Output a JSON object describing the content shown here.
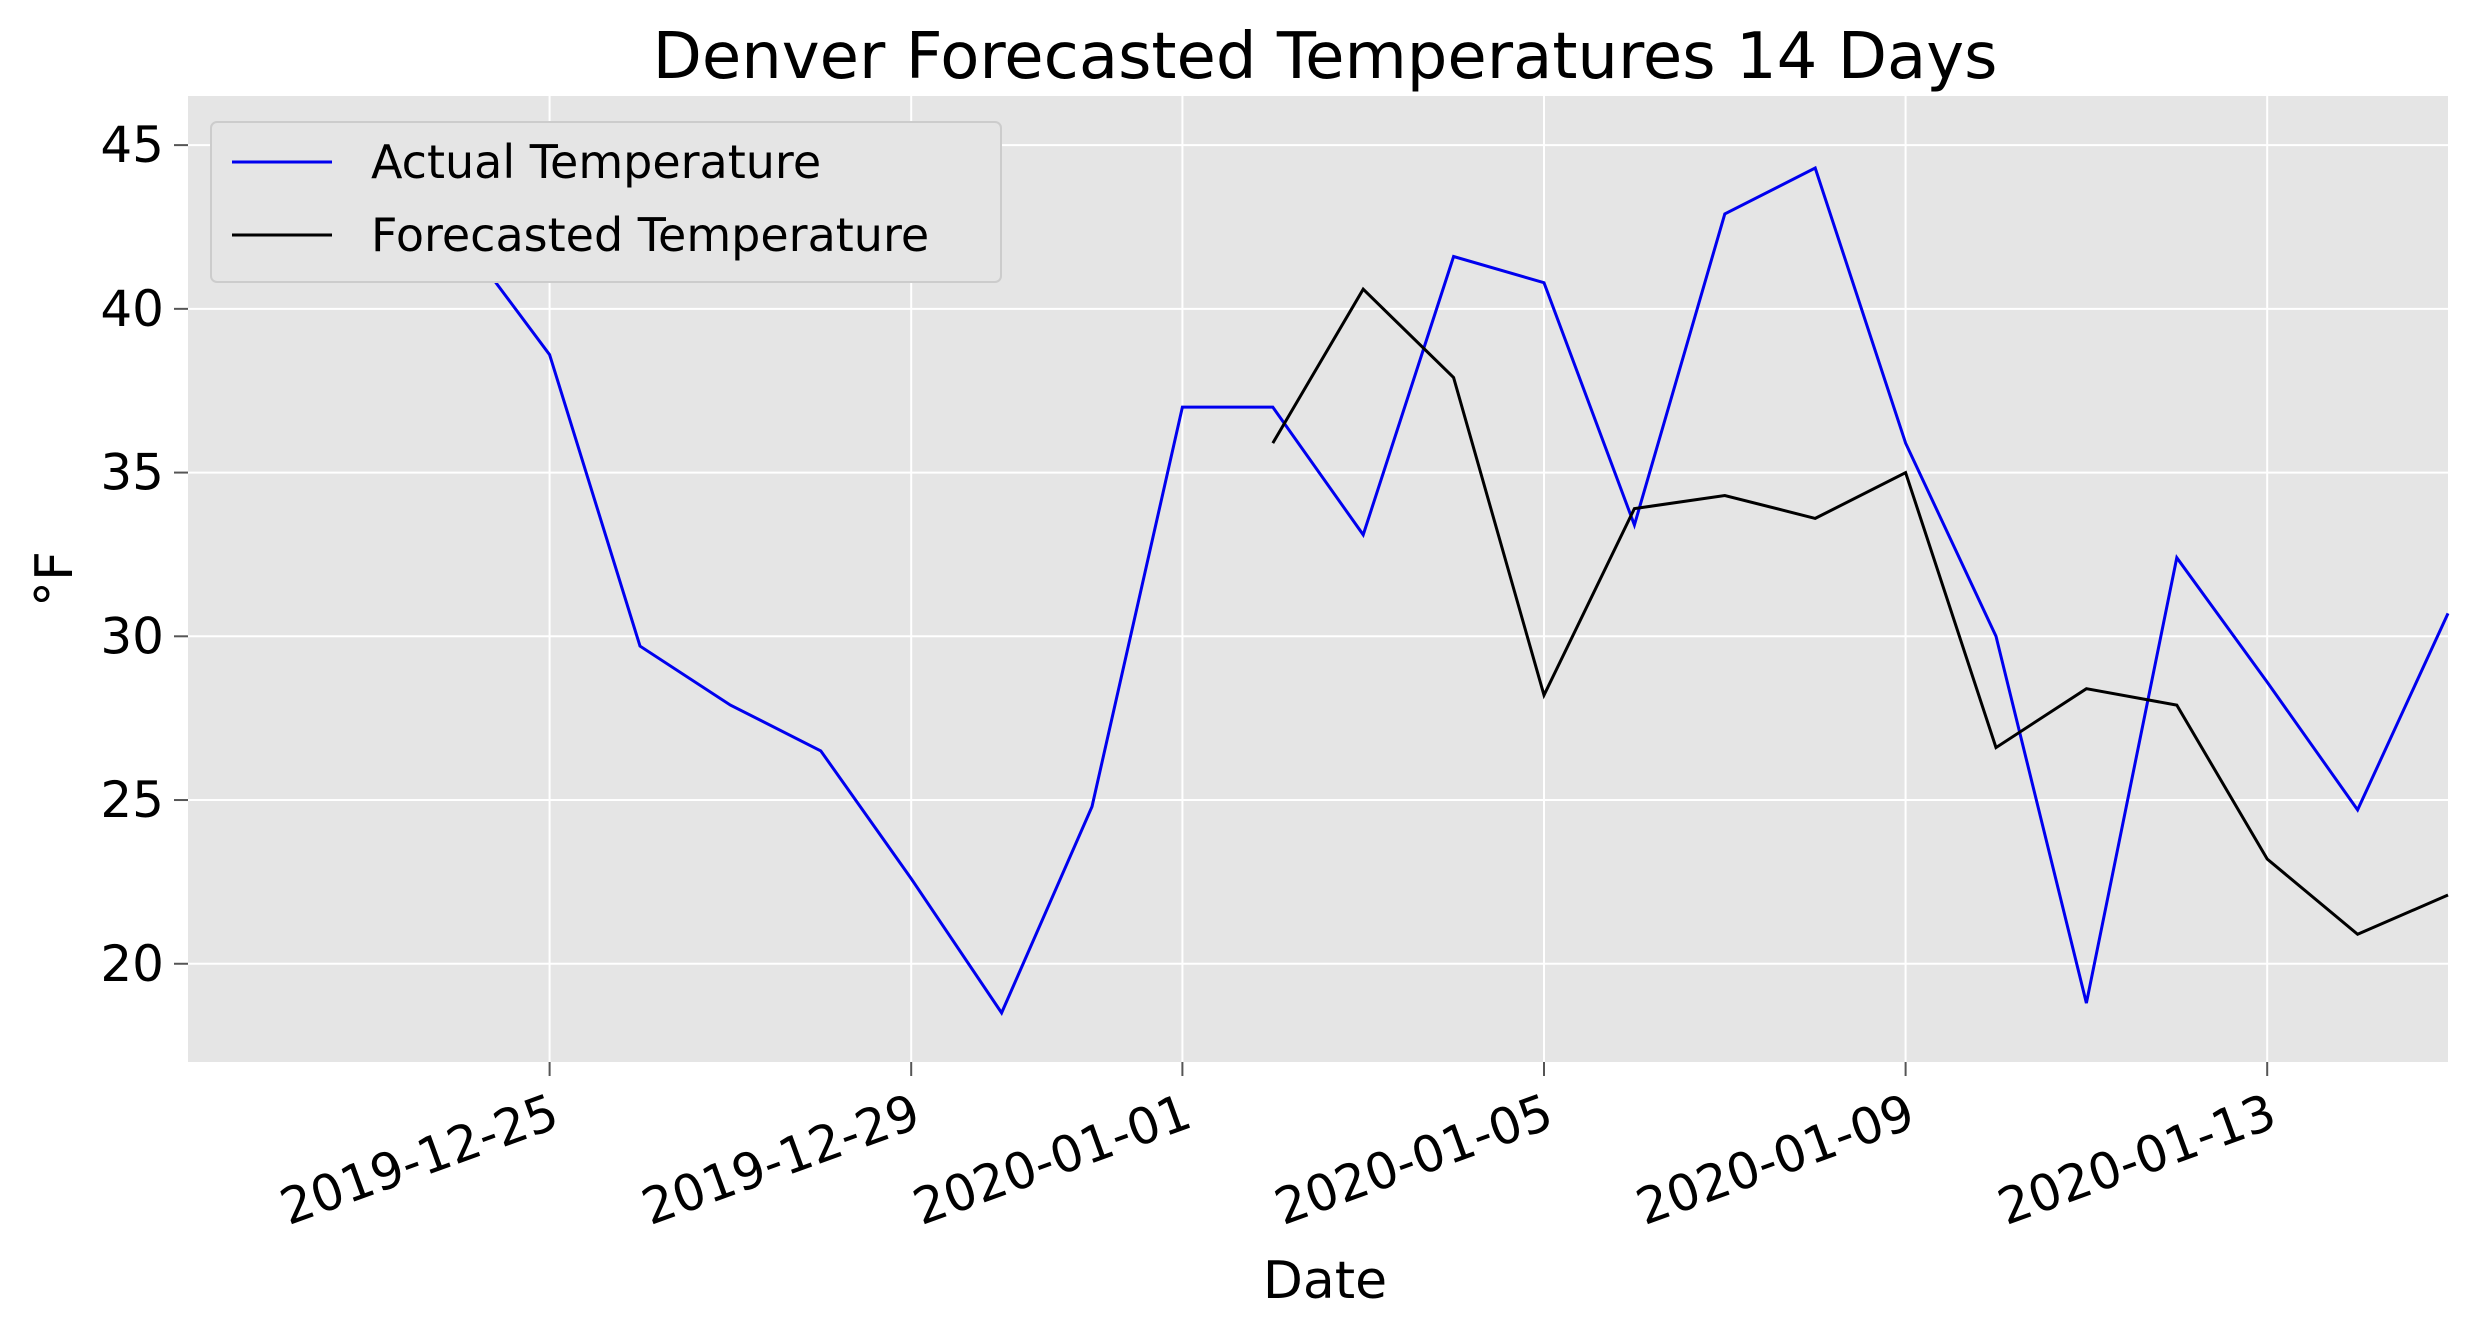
{
  "chart_data": {
    "type": "line",
    "title": "Denver Forecasted Temperatures 14 Days",
    "xlabel": "Date",
    "ylabel": "°F",
    "x_tick_labels": [
      "2019-12-25",
      "2019-12-29",
      "2020-01-01",
      "2020-01-05",
      "2020-01-09",
      "2020-01-13"
    ],
    "y_ticks": [
      20,
      25,
      30,
      35,
      40,
      45
    ],
    "xlim": [
      "2019-12-21",
      "2020-01-15"
    ],
    "ylim": [
      17,
      46.5
    ],
    "grid": true,
    "legend_position": "upper-left",
    "series": [
      {
        "name": "Actual Temperature",
        "color": "#0000ee",
        "x": [
          "2019-12-23",
          "2019-12-24",
          "2019-12-25",
          "2019-12-26",
          "2019-12-27",
          "2019-12-28",
          "2019-12-29",
          "2019-12-30",
          "2019-12-31",
          "2020-01-01",
          "2020-01-02",
          "2020-01-03",
          "2020-01-04",
          "2020-01-05",
          "2020-01-06",
          "2020-01-07",
          "2020-01-08",
          "2020-01-09",
          "2020-01-10",
          "2020-01-11",
          "2020-01-12",
          "2020-01-13",
          "2020-01-14",
          "2020-01-15"
        ],
        "values": [
          45.4,
          42.3,
          38.6,
          29.7,
          27.9,
          26.5,
          22.6,
          18.5,
          24.8,
          37.0,
          37.0,
          33.1,
          41.6,
          40.8,
          33.4,
          42.9,
          44.3,
          35.9,
          30.0,
          18.8,
          32.4,
          28.6,
          24.7,
          30.7
        ]
      },
      {
        "name": "Forecasted Temperature",
        "color": "#000000",
        "x": [
          "2020-01-02",
          "2020-01-03",
          "2020-01-04",
          "2020-01-05",
          "2020-01-06",
          "2020-01-07",
          "2020-01-08",
          "2020-01-09",
          "2020-01-10",
          "2020-01-11",
          "2020-01-12",
          "2020-01-13",
          "2020-01-14",
          "2020-01-15"
        ],
        "values": [
          35.9,
          40.6,
          37.9,
          28.2,
          33.9,
          34.3,
          33.6,
          35.0,
          26.6,
          28.4,
          27.9,
          23.2,
          20.9,
          22.1
        ]
      }
    ]
  }
}
